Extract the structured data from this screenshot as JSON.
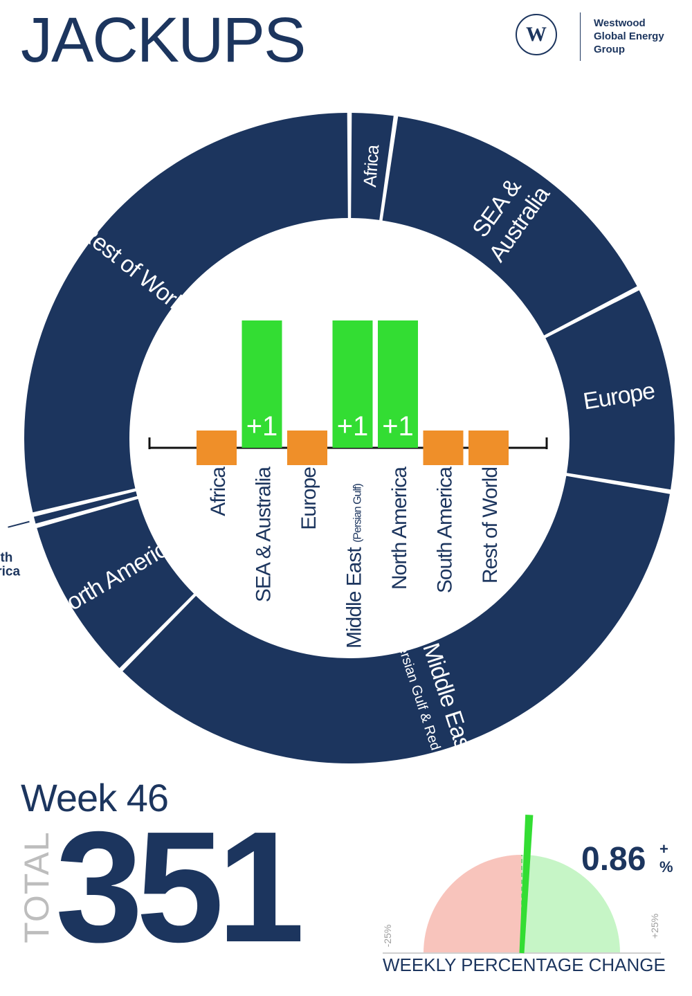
{
  "title": "JACKUPS",
  "brand": {
    "logo_letter": "W",
    "line1": "Westwood",
    "line2": "Global Energy",
    "line3": "Group"
  },
  "week_label": "Week 46",
  "total_label": "TOTAL",
  "total_value": "351",
  "gauge": {
    "value_text": "0.86",
    "sign": "+",
    "percent_symbol": "%",
    "value": 0.86,
    "min": -25,
    "max": 25,
    "min_label": "-25%",
    "max_label": "+25%",
    "caption": "WEEKLY PERCENTAGE CHANGE",
    "negative_color": "#f8c4bc",
    "positive_color": "#c6f5c6",
    "needle_color": "#33dd33"
  },
  "colors": {
    "navy": "#1c355e",
    "green": "#33dd33",
    "orange": "#ef8f29"
  },
  "chart_data": [
    {
      "type": "pie",
      "categories": [
        "Africa",
        "SEA & Australia",
        "Europe",
        "Middle East",
        "North America",
        "South America",
        "Rest of World"
      ],
      "slice_labels": [
        {
          "lines": [
            "Africa"
          ]
        },
        {
          "lines": [
            "SEA &",
            "Australia"
          ]
        },
        {
          "lines": [
            "Europe"
          ]
        },
        {
          "lines": [
            "Middle East"
          ],
          "sub": "(Persian Gulf & Red Sea)"
        },
        {
          "lines": [
            "North America"
          ]
        },
        {
          "lines": [
            "South",
            "America"
          ]
        },
        {
          "lines": [
            "Rest of World"
          ]
        }
      ],
      "values": [
        8,
        53,
        36,
        122,
        29,
        2,
        101
      ]
    },
    {
      "type": "bar",
      "categories": [
        "Africa",
        "SEA & Australia",
        "Europe",
        "Middle East",
        "North America",
        "South America",
        "Rest of World"
      ],
      "category_subs": [
        "",
        "",
        "",
        "(Persian Gulf)",
        "",
        "",
        ""
      ],
      "values": [
        0,
        1,
        0,
        1,
        1,
        0,
        0
      ],
      "data_labels": [
        "",
        "+1",
        "",
        "+1",
        "+1",
        "",
        ""
      ]
    }
  ]
}
